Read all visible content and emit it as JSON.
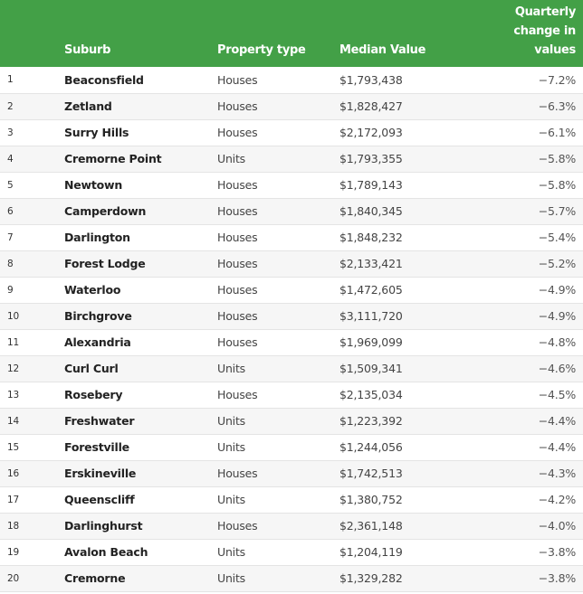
{
  "colors": {
    "header_bg": "#43a047",
    "header_text": "#ffffff"
  },
  "headers": {
    "rank": "",
    "suburb": "Suburb",
    "type": "Property type",
    "median": "Median Value",
    "change": "Quarterly change in values"
  },
  "rows": [
    {
      "rank": "1",
      "suburb": "Beaconsfield",
      "type": "Houses",
      "median": "$1,793,438",
      "change": "−7.2%"
    },
    {
      "rank": "2",
      "suburb": "Zetland",
      "type": "Houses",
      "median": "$1,828,427",
      "change": "−6.3%"
    },
    {
      "rank": "3",
      "suburb": "Surry Hills",
      "type": "Houses",
      "median": "$2,172,093",
      "change": "−6.1%"
    },
    {
      "rank": "4",
      "suburb": "Cremorne Point",
      "type": "Units",
      "median": "$1,793,355",
      "change": "−5.8%"
    },
    {
      "rank": "5",
      "suburb": "Newtown",
      "type": "Houses",
      "median": "$1,789,143",
      "change": "−5.8%"
    },
    {
      "rank": "6",
      "suburb": "Camperdown",
      "type": "Houses",
      "median": "$1,840,345",
      "change": "−5.7%"
    },
    {
      "rank": "7",
      "suburb": "Darlington",
      "type": "Houses",
      "median": "$1,848,232",
      "change": "−5.4%"
    },
    {
      "rank": "8",
      "suburb": "Forest Lodge",
      "type": "Houses",
      "median": "$2,133,421",
      "change": "−5.2%"
    },
    {
      "rank": "9",
      "suburb": "Waterloo",
      "type": "Houses",
      "median": "$1,472,605",
      "change": "−4.9%"
    },
    {
      "rank": "10",
      "suburb": "Birchgrove",
      "type": "Houses",
      "median": "$3,111,720",
      "change": "−4.9%"
    },
    {
      "rank": "11",
      "suburb": "Alexandria",
      "type": "Houses",
      "median": "$1,969,099",
      "change": "−4.8%"
    },
    {
      "rank": "12",
      "suburb": "Curl Curl",
      "type": "Units",
      "median": "$1,509,341",
      "change": "−4.6%"
    },
    {
      "rank": "13",
      "suburb": "Rosebery",
      "type": "Houses",
      "median": "$2,135,034",
      "change": "−4.5%"
    },
    {
      "rank": "14",
      "suburb": "Freshwater",
      "type": "Units",
      "median": "$1,223,392",
      "change": "−4.4%"
    },
    {
      "rank": "15",
      "suburb": "Forestville",
      "type": "Units",
      "median": "$1,244,056",
      "change": "−4.4%"
    },
    {
      "rank": "16",
      "suburb": "Erskineville",
      "type": "Houses",
      "median": "$1,742,513",
      "change": "−4.3%"
    },
    {
      "rank": "17",
      "suburb": "Queenscliff",
      "type": "Units",
      "median": "$1,380,752",
      "change": "−4.2%"
    },
    {
      "rank": "18",
      "suburb": "Darlinghurst",
      "type": "Houses",
      "median": "$2,361,148",
      "change": "−4.0%"
    },
    {
      "rank": "19",
      "suburb": "Avalon Beach",
      "type": "Units",
      "median": "$1,204,119",
      "change": "−3.8%"
    },
    {
      "rank": "20",
      "suburb": "Cremorne",
      "type": "Units",
      "median": "$1,329,282",
      "change": "−3.8%"
    }
  ]
}
